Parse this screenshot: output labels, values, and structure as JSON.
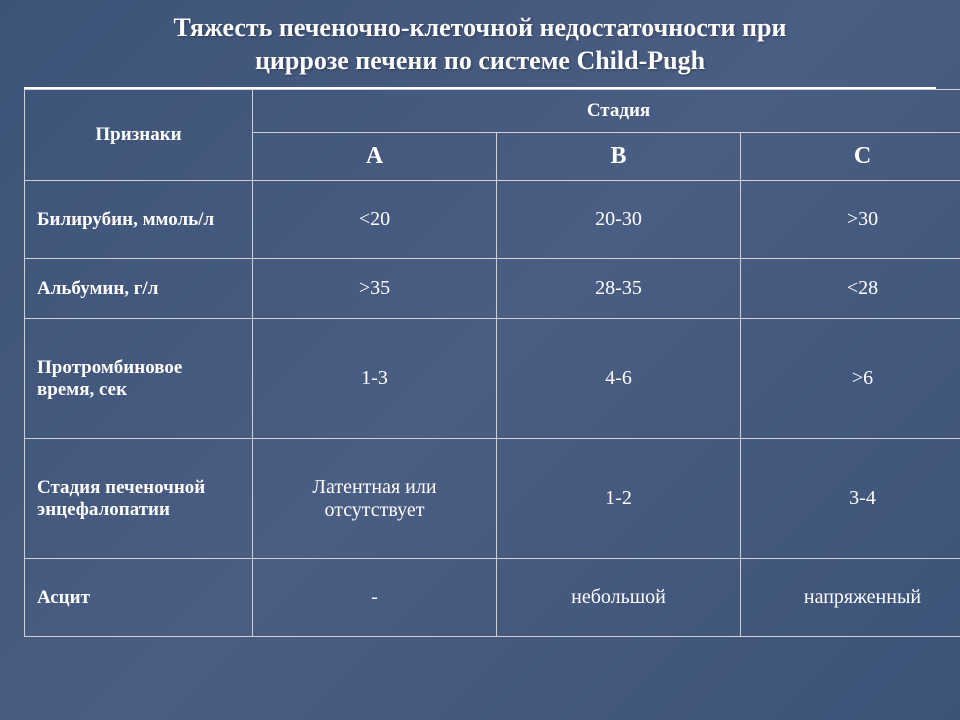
{
  "title_line1": "Тяжесть печеночно-клеточной недостаточности при",
  "title_line2": "циррозе печени по системе Child-Pugh",
  "table": {
    "signs_header": "Признаки",
    "stage_header": "Стадия",
    "stage_cols": [
      "А",
      "В",
      "С"
    ],
    "rows": [
      {
        "label": "Билирубин, ммоль/л",
        "a": "<20",
        "b": "20-30",
        "c": ">30",
        "row_class": "med-row"
      },
      {
        "label": "Альбумин, г/л",
        "a": ">35",
        "b": "28-35",
        "c": "<28",
        "row_class": "short-row"
      },
      {
        "label": "Протромбиновое время, сек",
        "a": "1-3",
        "b": "4-6",
        "c": ">6",
        "row_class": "tall-row"
      },
      {
        "label": "Стадия печеночной энцефалопатии",
        "a": "Латентная или отсутствует",
        "b": "1-2",
        "c": "3-4",
        "row_class": "tall-row"
      },
      {
        "label": "Асцит",
        "a": "-",
        "b": "небольшой",
        "c": "напряженный",
        "row_class": "med-row"
      }
    ]
  },
  "style": {
    "background_gradient": [
      "#3d5378",
      "#4a5d82",
      "#3d5378"
    ],
    "text_color": "#ffffff",
    "border_color": "#d0d0d0",
    "title_fontsize": 26,
    "header_fontsize": 19,
    "stage_col_fontsize": 24,
    "cell_fontsize": 20,
    "font_family": "Times New Roman"
  }
}
